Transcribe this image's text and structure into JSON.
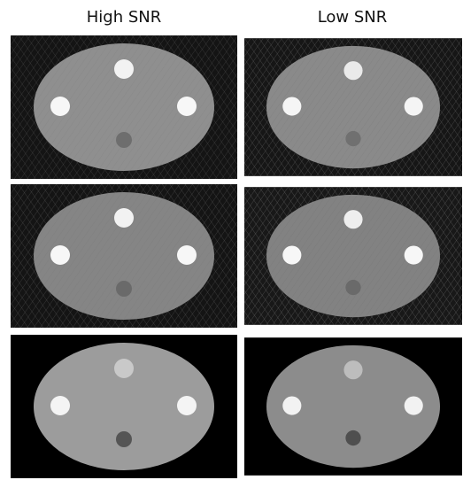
{
  "columns": [
    "High SNR",
    "Low SNR"
  ]
}
